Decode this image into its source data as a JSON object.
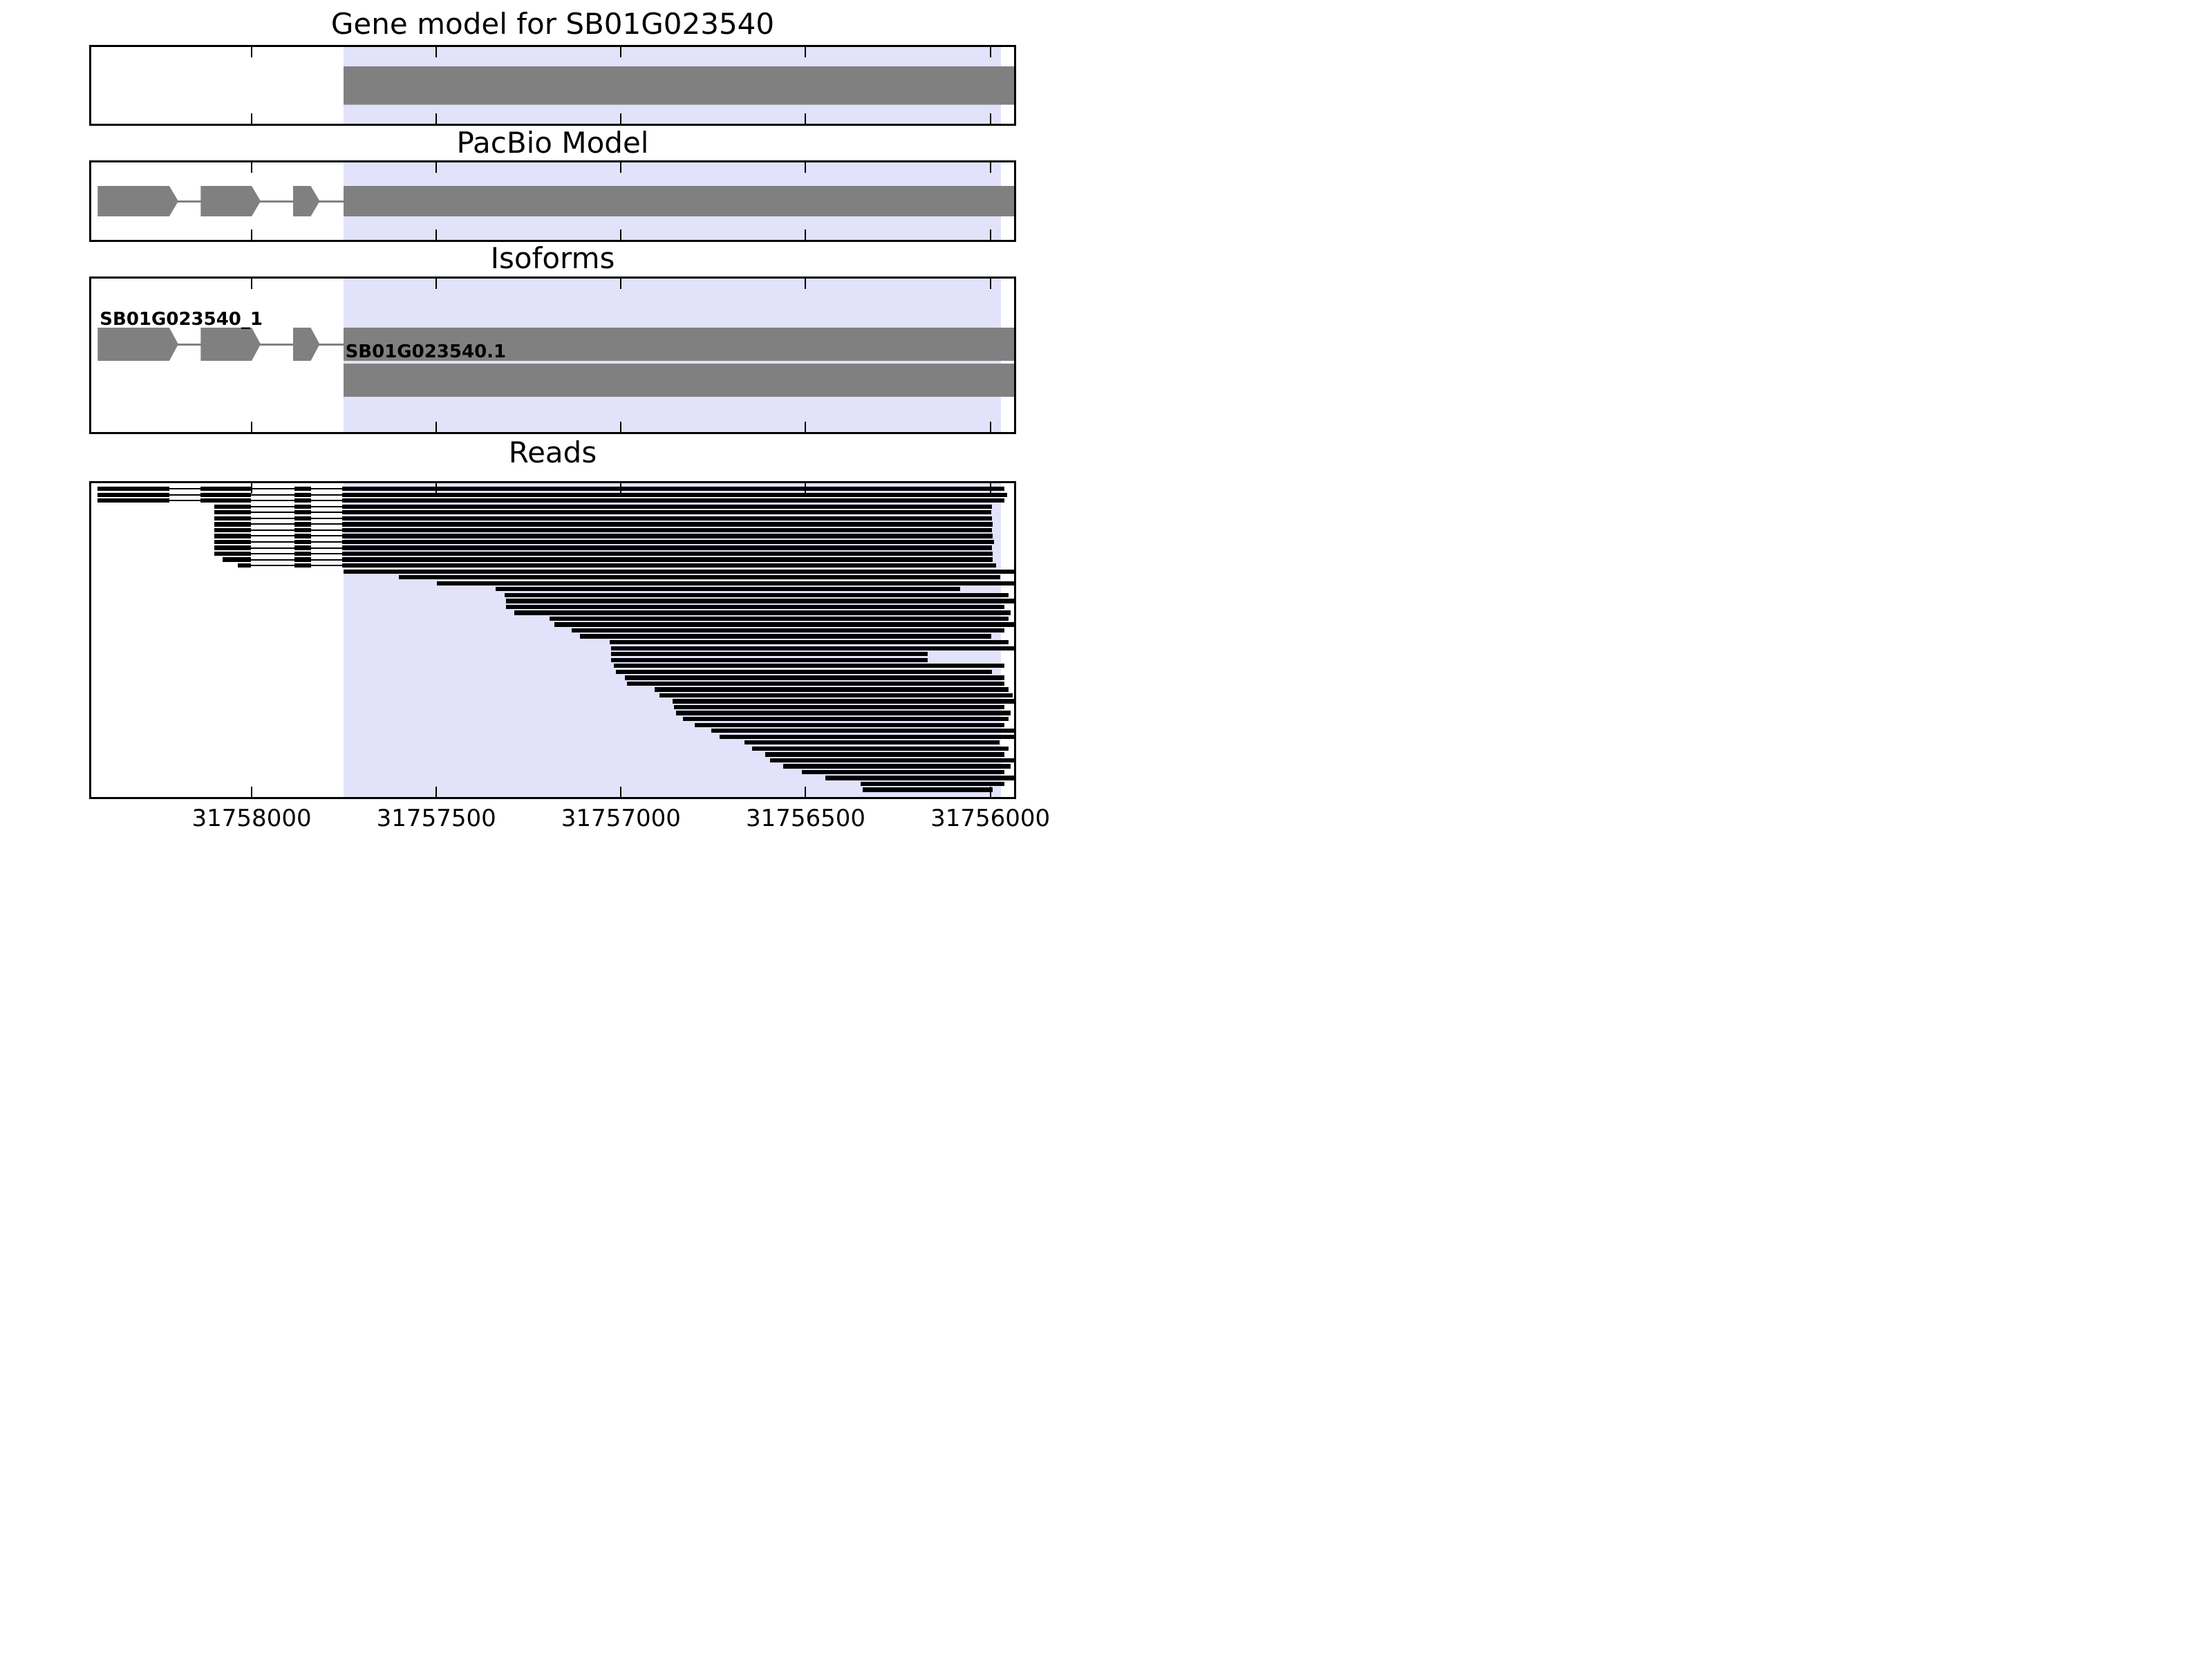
{
  "titles": {
    "gene_model": "Gene model for SB01G023540",
    "pacbio": "PacBio Model",
    "isoforms": "Isoforms",
    "reads": "Reads"
  },
  "style": {
    "exon_color": "#808080",
    "read_color": "#000000",
    "highlight_color": "#e2e2fa",
    "border_color": "#000000",
    "background_color": "#ffffff",
    "text_color": "#000000"
  },
  "chart_data": {
    "type": "genomic-track-plot",
    "title": "Gene model for SB01G023540",
    "panels": [
      "Gene model for SB01G023540",
      "PacBio Model",
      "Isoforms",
      "Reads"
    ],
    "xaxis": {
      "left_value": 31758440,
      "right_value": 31755930,
      "reversed": true,
      "ticks": [
        31758000,
        31757500,
        31757000,
        31756500,
        31756000
      ],
      "tick_labels": [
        "31758000",
        "31757500",
        "31757000",
        "31756500",
        "31756000"
      ]
    },
    "highlight_region": {
      "from": 31757752,
      "to": 31755971
    },
    "gene_model": {
      "name": "SB01G023540",
      "exons": [
        [
          31757752,
          31755935
        ]
      ],
      "arrow": true
    },
    "pacbio_model": {
      "exons": [
        [
          31758417,
          31758223
        ],
        [
          31758138,
          31758000
        ],
        [
          31757888,
          31757840
        ],
        [
          31757752,
          31755935
        ]
      ],
      "arrow": true
    },
    "isoforms": [
      {
        "label": "SB01G023540_1",
        "exons": [
          [
            31758417,
            31758223
          ],
          [
            31758138,
            31758000
          ],
          [
            31757888,
            31757840
          ],
          [
            31757752,
            31755935
          ]
        ],
        "arrow": true
      },
      {
        "label": "SB01G023540.1",
        "exons": [
          [
            31757752,
            31755935
          ]
        ],
        "arrow": true
      }
    ],
    "reads": [
      {
        "segments": [
          [
            31758417,
            31758223
          ],
          [
            31758138,
            31758002
          ],
          [
            31757884,
            31757840
          ],
          [
            31757755,
            31755961
          ]
        ]
      },
      {
        "segments": [
          [
            31758417,
            31758223
          ],
          [
            31758138,
            31758002
          ],
          [
            31757884,
            31757840
          ],
          [
            31757755,
            31755955
          ]
        ]
      },
      {
        "segments": [
          [
            31758417,
            31758223
          ],
          [
            31758138,
            31758002
          ],
          [
            31757884,
            31757840
          ],
          [
            31757755,
            31755961
          ]
        ]
      },
      {
        "segments": [
          [
            31758102,
            31758002
          ],
          [
            31757884,
            31757840
          ],
          [
            31757755,
            31755995
          ]
        ]
      },
      {
        "segments": [
          [
            31758102,
            31758002
          ],
          [
            31757884,
            31757840
          ],
          [
            31757755,
            31755997
          ]
        ]
      },
      {
        "segments": [
          [
            31758102,
            31758002
          ],
          [
            31757884,
            31757840
          ],
          [
            31757755,
            31755995
          ]
        ]
      },
      {
        "segments": [
          [
            31758102,
            31758002
          ],
          [
            31757884,
            31757840
          ],
          [
            31757755,
            31755994
          ]
        ]
      },
      {
        "segments": [
          [
            31758102,
            31758002
          ],
          [
            31757884,
            31757840
          ],
          [
            31757755,
            31755995
          ]
        ]
      },
      {
        "segments": [
          [
            31758102,
            31758002
          ],
          [
            31757884,
            31757840
          ],
          [
            31757755,
            31755994
          ]
        ]
      },
      {
        "segments": [
          [
            31758102,
            31758002
          ],
          [
            31757884,
            31757840
          ],
          [
            31757755,
            31755990
          ]
        ]
      },
      {
        "segments": [
          [
            31758102,
            31758002
          ],
          [
            31757884,
            31757840
          ],
          [
            31757755,
            31755995
          ]
        ]
      },
      {
        "segments": [
          [
            31758102,
            31758002
          ],
          [
            31757884,
            31757840
          ],
          [
            31757755,
            31755994
          ]
        ]
      },
      {
        "segments": [
          [
            31758078,
            31758002
          ],
          [
            31757884,
            31757840
          ],
          [
            31757755,
            31755994
          ]
        ]
      },
      {
        "segments": [
          [
            31758038,
            31758002
          ],
          [
            31757884,
            31757840
          ],
          [
            31757755,
            31755985
          ]
        ]
      },
      {
        "segments": [
          [
            31757752,
            31755929
          ]
        ]
      },
      {
        "segments": [
          [
            31757602,
            31755973
          ]
        ]
      },
      {
        "segments": [
          [
            31757499,
            31755929
          ]
        ]
      },
      {
        "segments": [
          [
            31757340,
            31756082
          ]
        ]
      },
      {
        "segments": [
          [
            31757316,
            31755950
          ]
        ]
      },
      {
        "segments": [
          [
            31757312,
            31755929
          ]
        ]
      },
      {
        "segments": [
          [
            31757312,
            31755961
          ]
        ]
      },
      {
        "segments": [
          [
            31757289,
            31755945
          ]
        ]
      },
      {
        "segments": [
          [
            31757193,
            31755950
          ]
        ]
      },
      {
        "segments": [
          [
            31757181,
            31755929
          ]
        ]
      },
      {
        "segments": [
          [
            31757134,
            31755961
          ]
        ]
      },
      {
        "segments": [
          [
            31757111,
            31755997
          ]
        ]
      },
      {
        "segments": [
          [
            31757030,
            31755950
          ]
        ]
      },
      {
        "segments": [
          [
            31757027,
            31755929
          ]
        ]
      },
      {
        "segments": [
          [
            31757027,
            31756169
          ]
        ]
      },
      {
        "segments": [
          [
            31757027,
            31756169
          ]
        ]
      },
      {
        "segments": [
          [
            31757019,
            31755961
          ]
        ]
      },
      {
        "segments": [
          [
            31757013,
            31755995
          ]
        ]
      },
      {
        "segments": [
          [
            31756989,
            31755961
          ]
        ]
      },
      {
        "segments": [
          [
            31756984,
            31755961
          ]
        ]
      },
      {
        "segments": [
          [
            31756909,
            31755950
          ]
        ]
      },
      {
        "segments": [
          [
            31756895,
            31755940
          ]
        ]
      },
      {
        "segments": [
          [
            31756860,
            31755929
          ]
        ]
      },
      {
        "segments": [
          [
            31756857,
            31755961
          ]
        ]
      },
      {
        "segments": [
          [
            31756850,
            31755945
          ]
        ]
      },
      {
        "segments": [
          [
            31756833,
            31755950
          ]
        ]
      },
      {
        "segments": [
          [
            31756800,
            31755961
          ]
        ]
      },
      {
        "segments": [
          [
            31756756,
            31755929
          ]
        ]
      },
      {
        "segments": [
          [
            31756733,
            31755929
          ]
        ]
      },
      {
        "segments": [
          [
            31756665,
            31755974
          ]
        ]
      },
      {
        "segments": [
          [
            31756645,
            31755950
          ]
        ]
      },
      {
        "segments": [
          [
            31756610,
            31755961
          ]
        ]
      },
      {
        "segments": [
          [
            31756597,
            31755929
          ]
        ]
      },
      {
        "segments": [
          [
            31756560,
            31755945
          ]
        ]
      },
      {
        "segments": [
          [
            31756510,
            31755961
          ]
        ]
      },
      {
        "segments": [
          [
            31756447,
            31755929
          ]
        ]
      },
      {
        "segments": [
          [
            31756352,
            31755961
          ]
        ]
      },
      {
        "segments": [
          [
            31756345,
            31755993
          ]
        ]
      }
    ]
  }
}
